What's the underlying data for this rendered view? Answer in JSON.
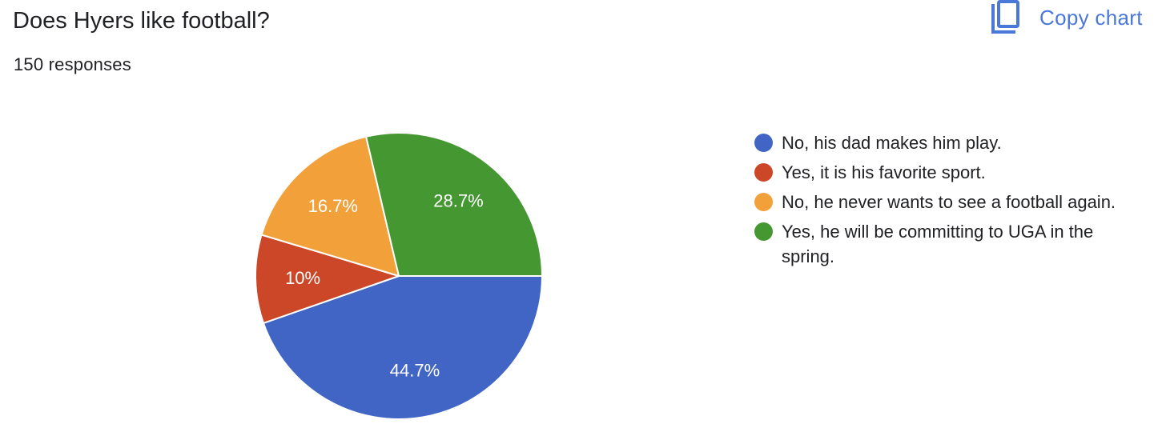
{
  "header": {
    "title": "Does Hyers like football?",
    "responses": "150 responses",
    "copy_chart_label": "Copy chart",
    "copy_icon": "copy-icon",
    "accent_color": "#4a78d9"
  },
  "chart_data": {
    "type": "pie",
    "title": "Does Hyers like football?",
    "total_responses": 150,
    "legend_position": "right",
    "slices": [
      {
        "label": "No, his dad makes him play.",
        "value": 44.7,
        "display": "44.7%",
        "color": "#4065c5"
      },
      {
        "label": "Yes, it is his favorite sport.",
        "value": 10,
        "display": "10%",
        "color": "#cc4628"
      },
      {
        "label": "No, he never wants to see a football again.",
        "value": 16.7,
        "display": "16.7%",
        "color": "#f1a03a"
      },
      {
        "label": "Yes, he will be committing to UGA in the spring.",
        "value": 28.7,
        "display": "28.7%",
        "color": "#459731"
      }
    ]
  }
}
